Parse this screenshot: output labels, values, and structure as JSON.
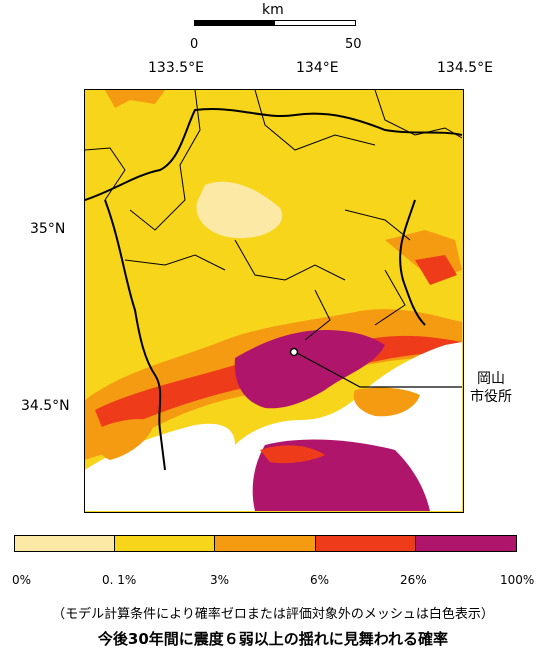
{
  "scale": {
    "unit": "km",
    "ticks": [
      "0",
      "50"
    ]
  },
  "axes": {
    "longitude_labels": [
      "133.5°E",
      "134°E",
      "134.5°E"
    ],
    "latitude_labels": [
      "35°N",
      "34.5°N"
    ]
  },
  "marker": {
    "label_line1": "岡山",
    "label_line2": "市役所"
  },
  "legend": {
    "ticks": [
      "0%",
      "0. 1%",
      "3%",
      "6%",
      "26%",
      "100%"
    ],
    "colors": [
      "#fde9a6",
      "#f7d51a",
      "#f59b12",
      "#ee3c1a",
      "#b0156c"
    ]
  },
  "note": "（モデル計算条件により確率ゼロまたは評価対象外のメッシュは白色表示）",
  "caption": "今後30年間に震度６弱以上の揺れに見舞われる確率",
  "map_colors": {
    "background": "#f7d51a",
    "sea": "#ffffff",
    "boundary": "#000000"
  }
}
